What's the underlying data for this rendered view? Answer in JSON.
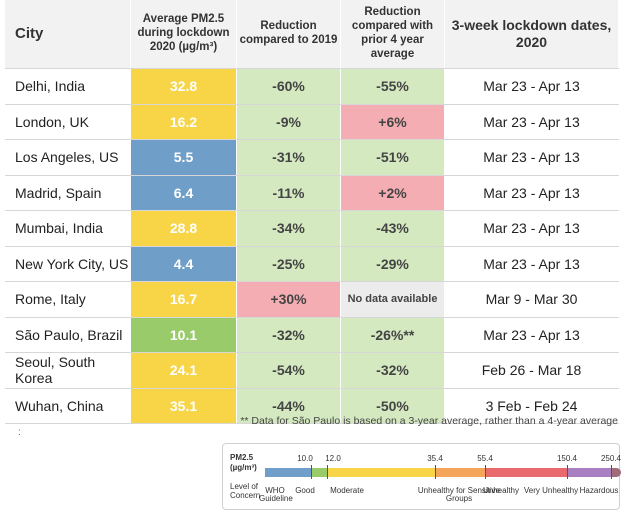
{
  "chart_data": {
    "type": "table",
    "columns": [
      "City",
      "Average PM2.5 during lockdown 2020 (µg/m³)",
      "Reduction compared to 2019",
      "Reduction compared with prior 4 year average",
      "3-week lockdown dates, 2020"
    ],
    "rows": [
      {
        "city": "Delhi, India",
        "pm25": "32.8",
        "red2019": "-60%",
        "red4yr": "-55%",
        "dates": "Mar 23 - Apr 13"
      },
      {
        "city": "London, UK",
        "pm25": "16.2",
        "red2019": "-9%",
        "red4yr": "+6%",
        "dates": "Mar 23 - Apr 13"
      },
      {
        "city": "Los Angeles, US",
        "pm25": "5.5",
        "red2019": "-31%",
        "red4yr": "-51%",
        "dates": "Mar 23 - Apr 13"
      },
      {
        "city": "Madrid, Spain",
        "pm25": "6.4",
        "red2019": "-11%",
        "red4yr": "+2%",
        "dates": "Mar 23 - Apr 13"
      },
      {
        "city": "Mumbai, India",
        "pm25": "28.8",
        "red2019": "-34%",
        "red4yr": "-43%",
        "dates": "Mar 23 - Apr 13"
      },
      {
        "city": "New York City, US",
        "pm25": "4.4",
        "red2019": "-25%",
        "red4yr": "-29%",
        "dates": "Mar 23 - Apr 13"
      },
      {
        "city": "Rome, Italy",
        "pm25": "16.7",
        "red2019": "+30%",
        "red4yr": "No data available",
        "dates": "Mar 9 - Mar 30"
      },
      {
        "city": "São Paulo, Brazil",
        "pm25": "10.1",
        "red2019": "-32%",
        "red4yr": "-26%**",
        "dates": "Mar 23 - Apr 13"
      },
      {
        "city": "Seoul, South Korea",
        "pm25": "24.1",
        "red2019": "-54%",
        "red4yr": "-32%",
        "dates": "Feb 26 - Mar 18"
      },
      {
        "city": "Wuhan, China",
        "pm25": "35.1",
        "red2019": "-44%",
        "red4yr": "-50%",
        "dates": "3 Feb - Feb 24"
      }
    ],
    "footnote": "** Data for São Paulo is based on a 3-year average, rather than a 4-year average",
    "dots": ":",
    "legend": {
      "pm_label": "PM2.5",
      "unit_label": "(µg/m³)",
      "concern_label": "Level of Concern",
      "thresholds": [
        "10.0",
        "12.0",
        "35.4",
        "55.4",
        "150.4",
        "250.4"
      ],
      "categories": [
        "WHO Guideline",
        "Good",
        "Moderate",
        "Unhealthy for Sensitive Groups",
        "Unhealthy",
        "Very Unhealthy",
        "Hazardous"
      ],
      "colors": [
        "#6f9fc8",
        "#9acb6a",
        "#f7d547",
        "#f5a55a",
        "#e96a6c",
        "#a87fc0",
        "#a06c78"
      ]
    },
    "cell_colors": {
      "pm_blue": "#6f9fc8",
      "pm_green": "#9acb6a",
      "pm_yellow": "#f7d547",
      "good_green": "#d4e9c0",
      "bad_pink": "#f4adb3",
      "nodata_grey": "#ececec",
      "header_grey": "#f2f2f2"
    }
  }
}
